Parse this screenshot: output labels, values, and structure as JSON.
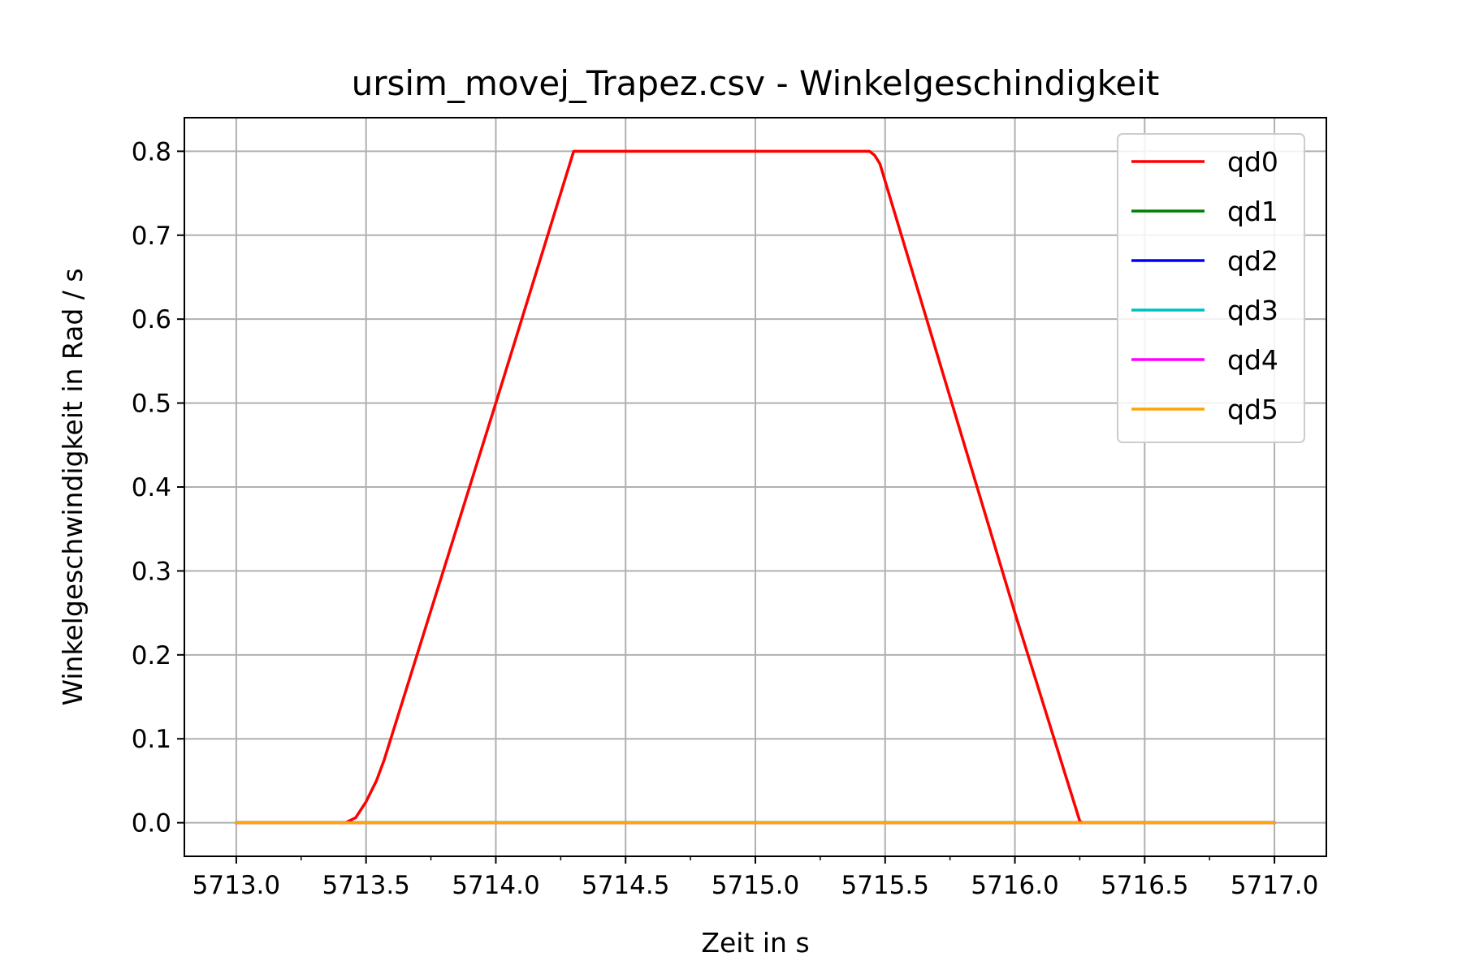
{
  "chart_data": {
    "type": "line",
    "title": "ursim_movej_Trapez.csv - Winkelgeschindigkeit",
    "xlabel": "Zeit in s",
    "ylabel": "Winkelgeschwindigkeit in Rad / s",
    "xlim": [
      5712.8,
      5717.2
    ],
    "ylim": [
      -0.04,
      0.84
    ],
    "xticks": [
      5713.0,
      5713.5,
      5714.0,
      5714.5,
      5715.0,
      5715.5,
      5716.0,
      5716.5,
      5717.0
    ],
    "xtick_labels": [
      "5713.0",
      "5713.5",
      "5714.0",
      "5714.5",
      "5715.0",
      "5715.5",
      "5716.0",
      "5716.5",
      "5717.0"
    ],
    "xticks_minor": [
      5713.25,
      5713.75,
      5714.25,
      5714.75,
      5715.25,
      5715.75,
      5716.25,
      5716.75
    ],
    "yticks": [
      0.0,
      0.1,
      0.2,
      0.3,
      0.4,
      0.5,
      0.6,
      0.7,
      0.8
    ],
    "ytick_labels": [
      "0.0",
      "0.1",
      "0.2",
      "0.3",
      "0.4",
      "0.5",
      "0.6",
      "0.7",
      "0.8"
    ],
    "grid": true,
    "legend_position": "top-right",
    "series": [
      {
        "name": "qd0",
        "color": "#ff0000",
        "x": [
          5713.0,
          5713.42,
          5713.46,
          5713.5,
          5713.54,
          5713.57,
          5714.0,
          5714.29,
          5714.3,
          5715.44,
          5715.46,
          5715.48,
          5716.0,
          5716.25,
          5716.26,
          5717.0
        ],
        "y": [
          0.0,
          0.0,
          0.006,
          0.025,
          0.05,
          0.075,
          0.5,
          0.79,
          0.8,
          0.8,
          0.795,
          0.785,
          0.25,
          0.002,
          0.0,
          0.0
        ]
      },
      {
        "name": "qd1",
        "color": "#008000",
        "x": [
          5713.0,
          5717.0
        ],
        "y": [
          0.0,
          0.0
        ]
      },
      {
        "name": "qd2",
        "color": "#0000ff",
        "x": [
          5713.0,
          5717.0
        ],
        "y": [
          0.0,
          0.0
        ]
      },
      {
        "name": "qd3",
        "color": "#00bfbf",
        "x": [
          5713.0,
          5717.0
        ],
        "y": [
          0.0,
          0.0
        ]
      },
      {
        "name": "qd4",
        "color": "#ff00ff",
        "x": [
          5713.0,
          5717.0
        ],
        "y": [
          0.0,
          0.0
        ]
      },
      {
        "name": "qd5",
        "color": "#ffa500",
        "x": [
          5713.0,
          5717.0
        ],
        "y": [
          0.0,
          0.0
        ]
      }
    ]
  }
}
